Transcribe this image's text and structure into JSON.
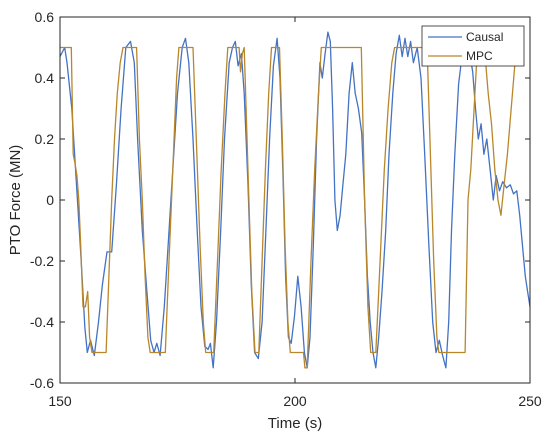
{
  "chart_data": {
    "type": "line",
    "title": "",
    "xlabel": "Time (s)",
    "ylabel": "PTO Force (MN)",
    "xlim": [
      150,
      250
    ],
    "ylim": [
      -0.6,
      0.6
    ],
    "x_ticks": [
      "150",
      "200",
      "250"
    ],
    "y_ticks": [
      "-0.6",
      "-0.4",
      "-0.2",
      "0",
      "0.2",
      "0.4",
      "0.6"
    ],
    "grid": false,
    "legend_position": "top-right",
    "series": [
      {
        "name": "Causal",
        "color": "#4472c4",
        "points": [
          [
            150,
            0.47
          ],
          [
            151,
            0.5
          ],
          [
            151.5,
            0.45
          ],
          [
            152.5,
            0.3
          ],
          [
            153.5,
            0.05
          ],
          [
            154.5,
            -0.2
          ],
          [
            155.3,
            -0.42
          ],
          [
            155.8,
            -0.5
          ],
          [
            156.5,
            -0.46
          ],
          [
            157.3,
            -0.51
          ],
          [
            158.2,
            -0.4
          ],
          [
            159,
            -0.28
          ],
          [
            160,
            -0.17
          ],
          [
            161,
            -0.17
          ],
          [
            162,
            0.05
          ],
          [
            163,
            0.3
          ],
          [
            164,
            0.5
          ],
          [
            165,
            0.52
          ],
          [
            165.8,
            0.45
          ],
          [
            166.5,
            0.2
          ],
          [
            167.5,
            -0.1
          ],
          [
            168.5,
            -0.3
          ],
          [
            169.3,
            -0.46
          ],
          [
            170,
            -0.5
          ],
          [
            170.6,
            -0.47
          ],
          [
            171.3,
            -0.51
          ],
          [
            172.2,
            -0.35
          ],
          [
            173,
            -0.15
          ],
          [
            174,
            0.1
          ],
          [
            175,
            0.35
          ],
          [
            176,
            0.5
          ],
          [
            176.7,
            0.53
          ],
          [
            177.4,
            0.45
          ],
          [
            178.3,
            0.2
          ],
          [
            179.2,
            -0.1
          ],
          [
            180,
            -0.35
          ],
          [
            180.8,
            -0.48
          ],
          [
            181.5,
            -0.49
          ],
          [
            182,
            -0.47
          ],
          [
            182.6,
            -0.55
          ],
          [
            183.3,
            -0.4
          ],
          [
            184.2,
            -0.1
          ],
          [
            185,
            0.2
          ],
          [
            186,
            0.45
          ],
          [
            186.7,
            0.5
          ],
          [
            187.3,
            0.52
          ],
          [
            187.9,
            0.44
          ],
          [
            188.6,
            0.48
          ],
          [
            189.2,
            0.35
          ],
          [
            190,
            0.05
          ],
          [
            190.7,
            -0.28
          ],
          [
            191.4,
            -0.5
          ],
          [
            192.2,
            -0.52
          ],
          [
            193,
            -0.4
          ],
          [
            193.8,
            -0.1
          ],
          [
            194.6,
            0.2
          ],
          [
            195.4,
            0.44
          ],
          [
            196.2,
            0.53
          ],
          [
            196.8,
            0.4
          ],
          [
            197.4,
            0.1
          ],
          [
            198,
            -0.25
          ],
          [
            198.6,
            -0.45
          ],
          [
            199.2,
            -0.47
          ],
          [
            199.9,
            -0.38
          ],
          [
            200.6,
            -0.25
          ],
          [
            201.3,
            -0.35
          ],
          [
            202,
            -0.5
          ],
          [
            202.6,
            -0.55
          ],
          [
            203.2,
            -0.45
          ],
          [
            203.9,
            -0.15
          ],
          [
            204.6,
            0.2
          ],
          [
            205.3,
            0.45
          ],
          [
            205.8,
            0.4
          ],
          [
            206.4,
            0.48
          ],
          [
            207,
            0.55
          ],
          [
            207.5,
            0.52
          ],
          [
            208,
            0.3
          ],
          [
            208.5,
            0.0
          ],
          [
            209,
            -0.1
          ],
          [
            209.6,
            -0.05
          ],
          [
            210.2,
            0.05
          ],
          [
            210.8,
            0.15
          ],
          [
            211.5,
            0.35
          ],
          [
            212.2,
            0.45
          ],
          [
            212.8,
            0.35
          ],
          [
            213.5,
            0.3
          ],
          [
            214.2,
            0.22
          ],
          [
            214.8,
            0.0
          ],
          [
            215.4,
            -0.25
          ],
          [
            216,
            -0.4
          ],
          [
            216.6,
            -0.5
          ],
          [
            217.2,
            -0.55
          ],
          [
            217.8,
            -0.45
          ],
          [
            218.5,
            -0.3
          ],
          [
            219.3,
            -0.1
          ],
          [
            220,
            0.15
          ],
          [
            220.8,
            0.35
          ],
          [
            221.5,
            0.48
          ],
          [
            222.2,
            0.54
          ],
          [
            222.8,
            0.47
          ],
          [
            223.4,
            0.53
          ],
          [
            224,
            0.47
          ],
          [
            224.6,
            0.52
          ],
          [
            225.2,
            0.45
          ],
          [
            226,
            0.5
          ],
          [
            226.8,
            0.4
          ],
          [
            227.6,
            0.15
          ],
          [
            228.5,
            -0.15
          ],
          [
            229.3,
            -0.4
          ],
          [
            230,
            -0.5
          ],
          [
            230.7,
            -0.46
          ],
          [
            231.4,
            -0.51
          ],
          [
            232.1,
            -0.55
          ],
          [
            232.7,
            -0.4
          ],
          [
            233.3,
            -0.1
          ],
          [
            234,
            0.15
          ],
          [
            234.8,
            0.38
          ],
          [
            235.6,
            0.48
          ],
          [
            236.4,
            0.5
          ],
          [
            237.2,
            0.48
          ],
          [
            237.8,
            0.42
          ],
          [
            238.4,
            0.3
          ],
          [
            239,
            0.2
          ],
          [
            239.6,
            0.25
          ],
          [
            240.2,
            0.15
          ],
          [
            240.8,
            0.2
          ],
          [
            241.5,
            0.1
          ],
          [
            242.2,
            0.0
          ],
          [
            242.8,
            0.08
          ],
          [
            243.5,
            0.03
          ],
          [
            244.2,
            0.06
          ],
          [
            245,
            0.04
          ],
          [
            245.8,
            0.05
          ],
          [
            246.5,
            0.02
          ],
          [
            247.2,
            0.03
          ],
          [
            247.8,
            -0.05
          ],
          [
            248.4,
            -0.15
          ],
          [
            249,
            -0.25
          ],
          [
            249.5,
            -0.3
          ],
          [
            250,
            -0.35
          ]
        ]
      },
      {
        "name": "MPC",
        "color": "#b8862b",
        "points": [
          [
            150,
            0.5
          ],
          [
            152.4,
            0.5
          ],
          [
            152.8,
            0.15
          ],
          [
            153.2,
            0.12
          ],
          [
            153.6,
            0.08
          ],
          [
            154,
            0.0
          ],
          [
            154.4,
            -0.15
          ],
          [
            154.9,
            -0.35
          ],
          [
            155.4,
            -0.35
          ],
          [
            155.9,
            -0.3
          ],
          [
            156.3,
            -0.45
          ],
          [
            156.8,
            -0.5
          ],
          [
            159.8,
            -0.5
          ],
          [
            160.4,
            -0.25
          ],
          [
            161,
            0.0
          ],
          [
            161.6,
            0.2
          ],
          [
            162.2,
            0.35
          ],
          [
            162.8,
            0.45
          ],
          [
            163.4,
            0.5
          ],
          [
            166.3,
            0.5
          ],
          [
            166.9,
            0.2
          ],
          [
            167.5,
            0.0
          ],
          [
            168.1,
            -0.25
          ],
          [
            168.7,
            -0.45
          ],
          [
            169.2,
            -0.5
          ],
          [
            172.4,
            -0.5
          ],
          [
            173.2,
            -0.2
          ],
          [
            174,
            0.1
          ],
          [
            174.8,
            0.4
          ],
          [
            175.3,
            0.5
          ],
          [
            178.3,
            0.5
          ],
          [
            179,
            0.2
          ],
          [
            179.8,
            -0.15
          ],
          [
            180.5,
            -0.4
          ],
          [
            181,
            -0.5
          ],
          [
            182.7,
            -0.5
          ],
          [
            183.5,
            -0.2
          ],
          [
            184.3,
            0.1
          ],
          [
            185.1,
            0.35
          ],
          [
            185.7,
            0.5
          ],
          [
            188.1,
            0.5
          ],
          [
            188.4,
            0.42
          ],
          [
            188.8,
            0.48
          ],
          [
            189.2,
            0.5
          ],
          [
            189.6,
            0.3
          ],
          [
            190.2,
            0.0
          ],
          [
            190.8,
            -0.3
          ],
          [
            191.5,
            -0.5
          ],
          [
            192.3,
            -0.5
          ],
          [
            193,
            -0.2
          ],
          [
            193.7,
            0.1
          ],
          [
            194.4,
            0.35
          ],
          [
            195,
            0.5
          ],
          [
            196.7,
            0.5
          ],
          [
            197.3,
            0.2
          ],
          [
            197.9,
            -0.15
          ],
          [
            198.5,
            -0.4
          ],
          [
            199,
            -0.5
          ],
          [
            201.8,
            -0.5
          ],
          [
            202.1,
            -0.55
          ],
          [
            202.6,
            -0.55
          ],
          [
            203.4,
            -0.2
          ],
          [
            204.2,
            0.1
          ],
          [
            205,
            0.35
          ],
          [
            205.6,
            0.5
          ],
          [
            214.1,
            0.5
          ],
          [
            214.8,
            0.0
          ],
          [
            215.5,
            -0.35
          ],
          [
            216.1,
            -0.5
          ],
          [
            217.2,
            -0.5
          ],
          [
            217.8,
            -0.3
          ],
          [
            218.4,
            -0.1
          ],
          [
            219,
            0.1
          ],
          [
            219.8,
            0.3
          ],
          [
            220.6,
            0.45
          ],
          [
            221.2,
            0.5
          ],
          [
            228.1,
            0.5
          ],
          [
            228.8,
            0.15
          ],
          [
            229.5,
            -0.2
          ],
          [
            230.2,
            -0.45
          ],
          [
            230.6,
            -0.5
          ],
          [
            236.2,
            -0.5
          ],
          [
            236.8,
            0.0
          ],
          [
            237.4,
            0.1
          ],
          [
            238.1,
            0.3
          ],
          [
            238.8,
            0.5
          ],
          [
            240.3,
            0.5
          ],
          [
            241.1,
            0.35
          ],
          [
            241.8,
            0.25
          ],
          [
            242.5,
            0.1
          ],
          [
            243.2,
            0.0
          ],
          [
            243.8,
            -0.05
          ],
          [
            244.5,
            0.05
          ],
          [
            245.2,
            0.15
          ],
          [
            246,
            0.3
          ],
          [
            246.8,
            0.45
          ],
          [
            247.4,
            0.5
          ]
        ]
      }
    ]
  }
}
